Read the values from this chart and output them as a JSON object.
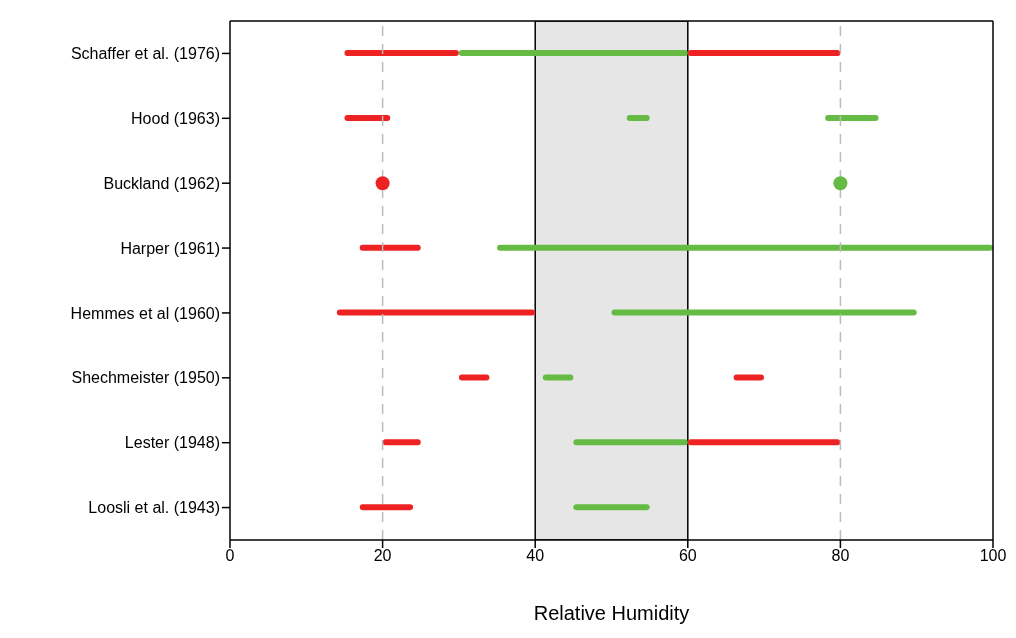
{
  "chart_data": {
    "type": "bar",
    "orientation": "horizontal",
    "xlabel": "Relative Humidity",
    "categories": [
      "Schaffer et al. (1976)",
      "Hood (1963)",
      "Buckland (1962)",
      "Harper (1961)",
      "Hemmes et al (1960)",
      "Shechmeister (1950)",
      "Lester (1948)",
      "Loosli et al. (1943)"
    ],
    "series": [
      {
        "color": "#ee2222",
        "base": [
          15,
          15,
          null,
          17,
          14,
          30,
          20,
          17
        ],
        "values": [
          15,
          6,
          null,
          8,
          26,
          4,
          5,
          7
        ]
      },
      {
        "color": "#ee2222",
        "base": [
          60,
          null,
          null,
          null,
          null,
          66,
          60,
          null
        ],
        "values": [
          20,
          null,
          null,
          null,
          null,
          4,
          20,
          null
        ]
      },
      {
        "color": "#66bb44",
        "base": [
          30,
          52,
          null,
          35,
          50,
          41,
          45,
          45
        ],
        "values": [
          30,
          3,
          null,
          65,
          40,
          4,
          15,
          10
        ]
      },
      {
        "color": "#66bb44",
        "base": [
          null,
          78,
          null,
          null,
          null,
          null,
          null,
          null
        ],
        "values": [
          null,
          7,
          null,
          null,
          null,
          null,
          null,
          null
        ]
      },
      {
        "type": "scatter",
        "color": "#ee2222",
        "x": [
          "Buckland (1962)"
        ],
        "values": [
          20
        ]
      },
      {
        "type": "scatter",
        "color": "#66bb44",
        "x": [
          "Buckland (1962)"
        ],
        "values": [
          80
        ]
      }
    ],
    "xlim": [
      0,
      100
    ],
    "xticks": [
      0,
      20,
      40,
      60,
      80,
      100
    ],
    "bands": [
      {
        "axis": "x",
        "from": 40,
        "to": 60,
        "color": "#e6e6e6"
      }
    ],
    "ref_lines": [
      {
        "axis": "x",
        "value": 20,
        "color": "#bbbbbb",
        "line_style": "dashed"
      },
      {
        "axis": "x",
        "value": 80,
        "color": "#bbbbbb",
        "line_style": "dashed"
      }
    ],
    "marker": "circle",
    "grid": false,
    "legend": false
  }
}
